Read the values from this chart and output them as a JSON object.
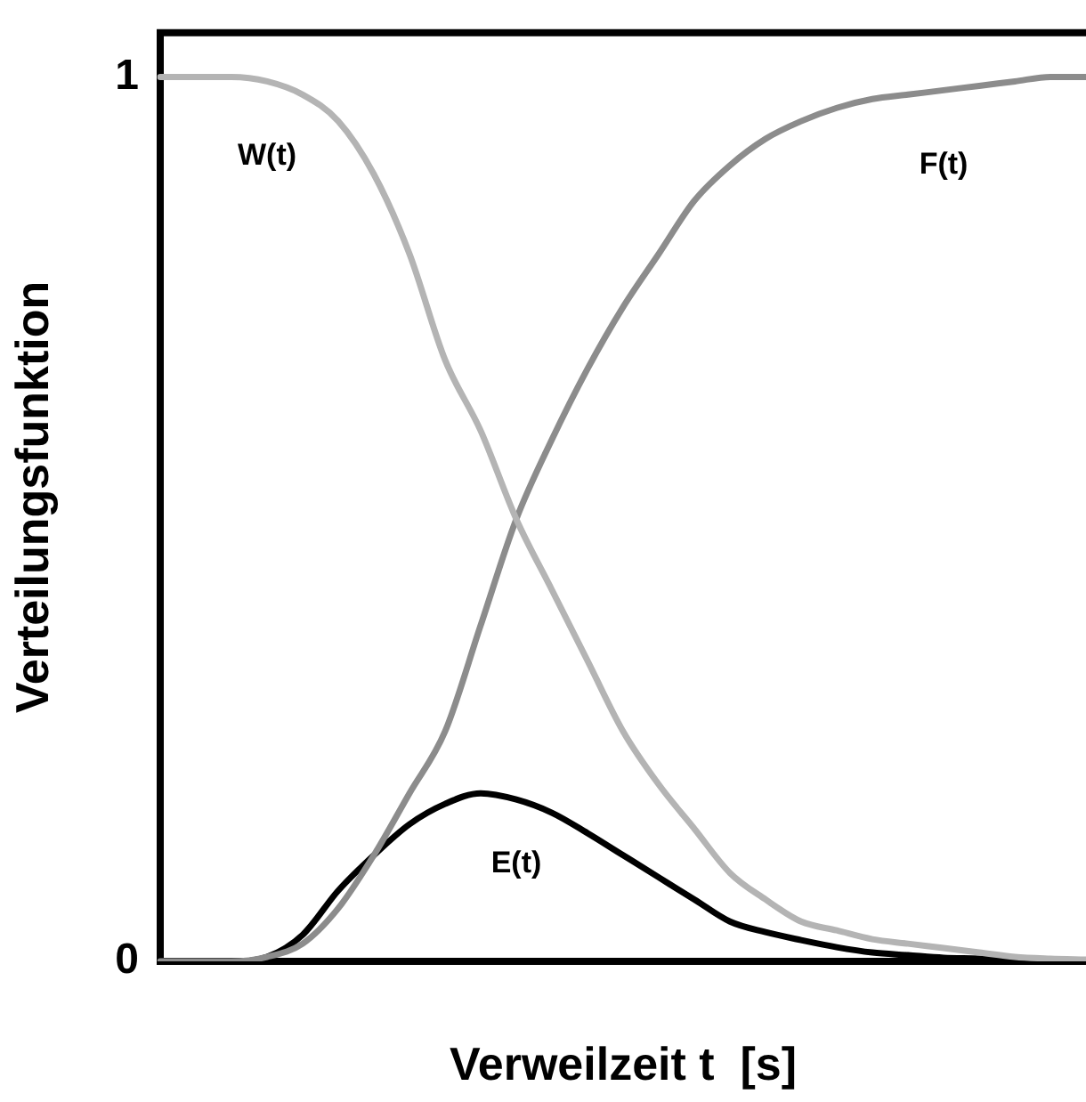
{
  "chart_data": {
    "type": "line",
    "xlabel": "Verweilzeit t  [s]",
    "ylabel": "Verteilungsfunktion",
    "categories": [
      null,
      null,
      null,
      null,
      null,
      null,
      null,
      null,
      null,
      null,
      null,
      null,
      null,
      null,
      null,
      null,
      null,
      null,
      null,
      null,
      null,
      null,
      null,
      null,
      null,
      null,
      null
    ],
    "series": [
      {
        "name": "W(t)",
        "color": "#b4b4b4",
        "values": [
          1,
          1,
          1,
          0.995,
          0.98,
          0.95,
          0.89,
          0.8,
          0.68,
          0.6,
          0.5,
          0.42,
          0.34,
          0.26,
          0.2,
          0.15,
          0.1,
          0.07,
          0.045,
          0.035,
          0.025,
          0.02,
          0.015,
          0.01,
          0.005,
          0.003,
          0.002
        ]
      },
      {
        "name": "F(t)",
        "color": "#8c8c8c",
        "values": [
          0,
          0,
          0,
          0.005,
          0.02,
          0.06,
          0.12,
          0.19,
          0.26,
          0.38,
          0.5,
          0.59,
          0.67,
          0.74,
          0.8,
          0.86,
          0.9,
          0.93,
          0.95,
          0.965,
          0.975,
          0.98,
          0.985,
          0.99,
          0.995,
          1,
          1
        ]
      },
      {
        "name": "E(t)",
        "color": "#000000",
        "values": [
          0,
          0,
          0,
          0.005,
          0.03,
          0.08,
          0.12,
          0.155,
          0.178,
          0.19,
          0.183,
          0.168,
          0.145,
          0.12,
          0.095,
          0.07,
          0.045,
          0.033,
          0.024,
          0.016,
          0.01,
          0.007,
          0.004,
          0.003,
          0.001,
          0,
          0
        ]
      }
    ],
    "ylim": [
      0,
      1.05
    ],
    "yticks": [
      0,
      1
    ],
    "grid": false,
    "legend": false,
    "marker": "none",
    "line_style": "solid"
  }
}
